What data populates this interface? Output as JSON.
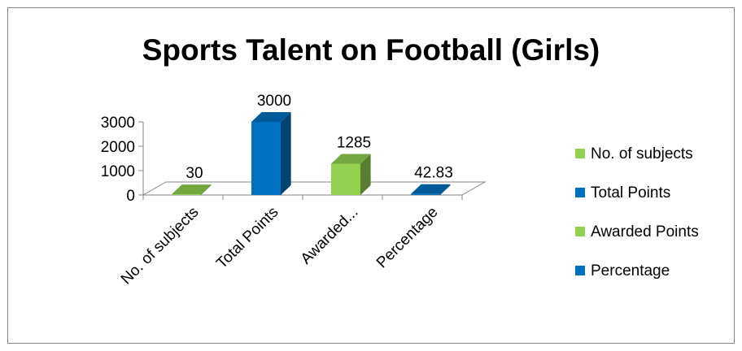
{
  "chart_data": {
    "type": "bar",
    "title": "Sports Talent on Football (Girls)",
    "categories": [
      "No. of subjects",
      "Total Points",
      "Awarded...",
      "Percentage"
    ],
    "values": [
      30,
      3000,
      1285,
      42.83
    ],
    "data_labels": [
      "30",
      "3000",
      "1285",
      "42.83"
    ],
    "ylim": [
      0,
      3000
    ],
    "yticks": [
      "0",
      "1000",
      "2000",
      "3000"
    ],
    "legend_position": "right",
    "legend": [
      {
        "label": "No. of subjects",
        "color": "#92d050"
      },
      {
        "label": "Total Points",
        "color": "#0070c0"
      },
      {
        "label": "Awarded Points",
        "color": "#92d050"
      },
      {
        "label": "Percentage",
        "color": "#0070c0"
      }
    ],
    "bar_colors": [
      "#92d050",
      "#0070c0",
      "#92d050",
      "#0070c0"
    ],
    "three_d": true,
    "grid": false
  }
}
